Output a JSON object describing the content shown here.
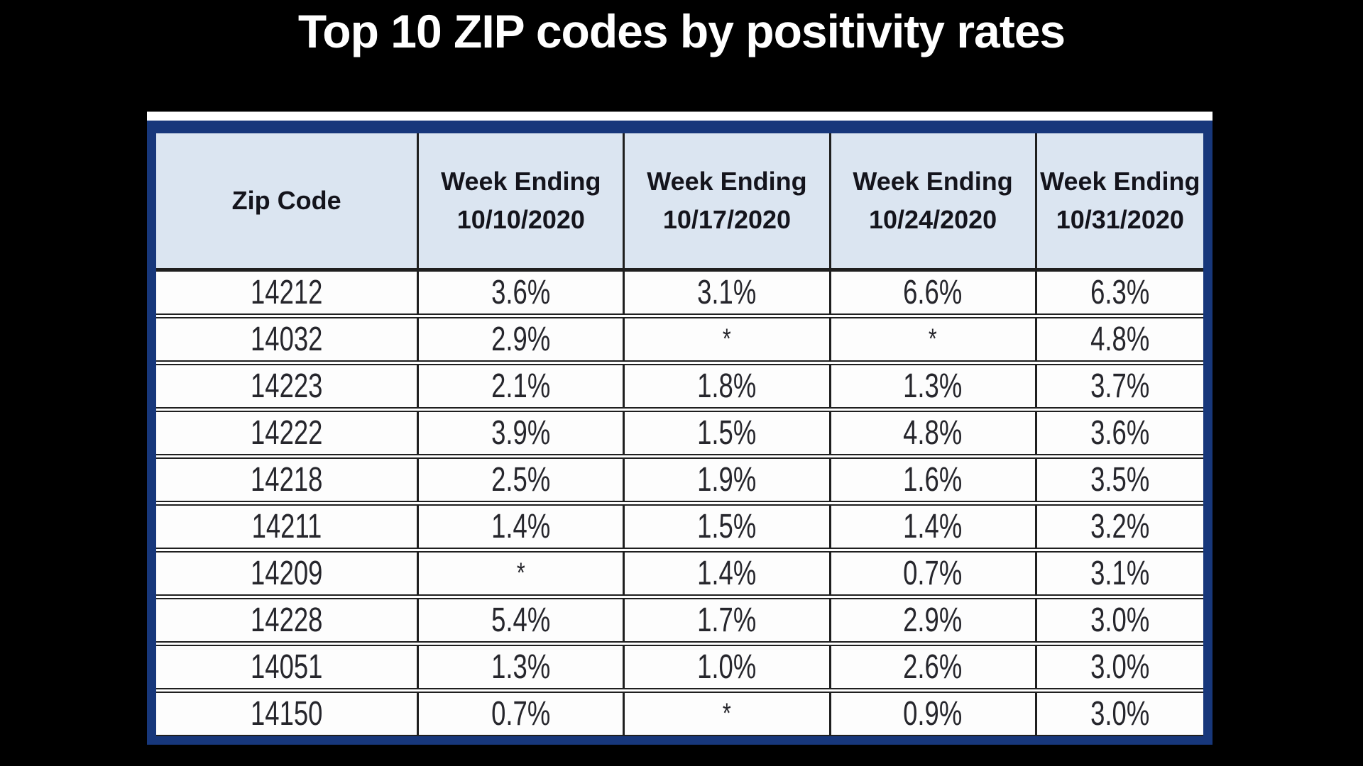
{
  "title": "Top 10 ZIP codes by positivity rates",
  "colors": {
    "page_bg": "#000000",
    "title_color": "#ffffff",
    "frame_color": "#17377b",
    "strip_color": "#ffffff",
    "header_bg": "#dbe5f1",
    "header_text": "#14141c",
    "cell_text": "#26262c",
    "grid_color": "#1f1f1f"
  },
  "table": {
    "columns": [
      {
        "label": "Zip Code",
        "sublabel": ""
      },
      {
        "label": "Week Ending",
        "sublabel": "10/10/2020"
      },
      {
        "label": "Week Ending",
        "sublabel": "10/17/2020"
      },
      {
        "label": "Week Ending",
        "sublabel": "10/24/2020"
      },
      {
        "label": "Week Ending",
        "sublabel": "10/31/2020"
      }
    ],
    "rows": [
      {
        "zip": "14212",
        "values": [
          "3.6%",
          "3.1%",
          "6.6%",
          "6.3%"
        ]
      },
      {
        "zip": "14032",
        "values": [
          "2.9%",
          "*",
          "*",
          "4.8%"
        ]
      },
      {
        "zip": "14223",
        "values": [
          "2.1%",
          "1.8%",
          "1.3%",
          "3.7%"
        ]
      },
      {
        "zip": "14222",
        "values": [
          "3.9%",
          "1.5%",
          "4.8%",
          "3.6%"
        ]
      },
      {
        "zip": "14218",
        "values": [
          "2.5%",
          "1.9%",
          "1.6%",
          "3.5%"
        ]
      },
      {
        "zip": "14211",
        "values": [
          "1.4%",
          "1.5%",
          "1.4%",
          "3.2%"
        ]
      },
      {
        "zip": "14209",
        "values": [
          "*",
          "1.4%",
          "0.7%",
          "3.1%"
        ]
      },
      {
        "zip": "14228",
        "values": [
          "5.4%",
          "1.7%",
          "2.9%",
          "3.0%"
        ]
      },
      {
        "zip": "14051",
        "values": [
          "1.3%",
          "1.0%",
          "2.6%",
          "3.0%"
        ]
      },
      {
        "zip": "14150",
        "values": [
          "0.7%",
          "*",
          "0.9%",
          "3.0%"
        ]
      }
    ]
  },
  "chart_data": {
    "type": "table",
    "title": "Top 10 ZIP codes by positivity rates",
    "columns": [
      "Zip Code",
      "Week Ending 10/10/2020",
      "Week Ending 10/17/2020",
      "Week Ending 10/24/2020",
      "Week Ending 10/31/2020"
    ],
    "rows": [
      [
        "14212",
        "3.6%",
        "3.1%",
        "6.6%",
        "6.3%"
      ],
      [
        "14032",
        "2.9%",
        "*",
        "*",
        "4.8%"
      ],
      [
        "14223",
        "2.1%",
        "1.8%",
        "1.3%",
        "3.7%"
      ],
      [
        "14222",
        "3.9%",
        "1.5%",
        "4.8%",
        "3.6%"
      ],
      [
        "14218",
        "2.5%",
        "1.9%",
        "1.6%",
        "3.5%"
      ],
      [
        "14211",
        "1.4%",
        "1.5%",
        "1.4%",
        "3.2%"
      ],
      [
        "14209",
        "*",
        "1.4%",
        "0.7%",
        "3.1%"
      ],
      [
        "14228",
        "5.4%",
        "1.7%",
        "2.9%",
        "3.0%"
      ],
      [
        "14051",
        "1.3%",
        "1.0%",
        "2.6%",
        "3.0%"
      ],
      [
        "14150",
        "0.7%",
        "*",
        "0.9%",
        "3.0%"
      ]
    ]
  }
}
